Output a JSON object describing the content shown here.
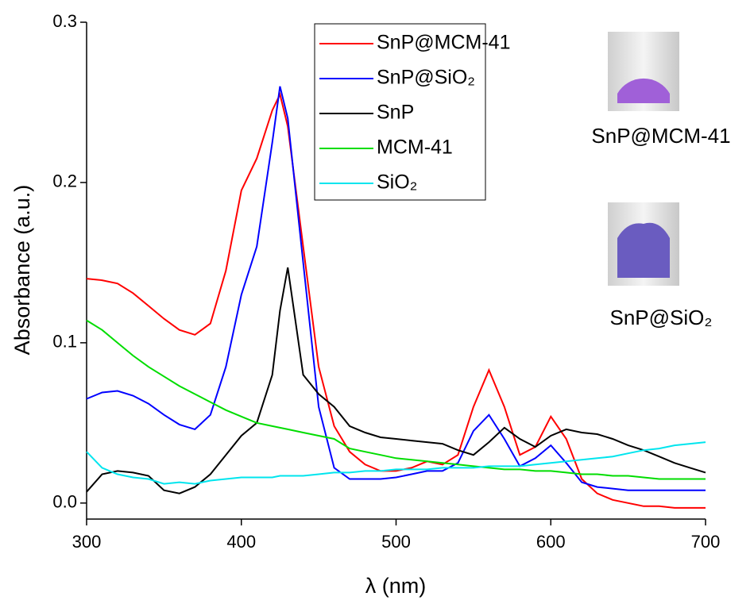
{
  "chart_data": {
    "type": "line",
    "x_label": "λ (nm)",
    "y_label": "Absorbance (a.u.)",
    "x": [
      300,
      310,
      320,
      330,
      340,
      350,
      360,
      370,
      380,
      390,
      400,
      410,
      420,
      425,
      430,
      440,
      450,
      460,
      470,
      480,
      490,
      500,
      510,
      520,
      530,
      540,
      550,
      560,
      570,
      580,
      590,
      600,
      610,
      620,
      630,
      640,
      650,
      660,
      670,
      680,
      690,
      700
    ],
    "series": [
      {
        "name": "SnP@MCM-41",
        "color": "#ff0000",
        "values": [
          0.14,
          0.139,
          0.137,
          0.131,
          0.123,
          0.115,
          0.108,
          0.105,
          0.112,
          0.145,
          0.195,
          0.215,
          0.245,
          0.255,
          0.235,
          0.16,
          0.085,
          0.048,
          0.032,
          0.024,
          0.02,
          0.02,
          0.022,
          0.026,
          0.024,
          0.03,
          0.06,
          0.083,
          0.06,
          0.03,
          0.035,
          0.054,
          0.04,
          0.015,
          0.006,
          0.002,
          0,
          -0.002,
          -0.002,
          -0.003,
          -0.003,
          -0.003
        ]
      },
      {
        "name": "SnP@SiO₂",
        "color": "#0000ff",
        "values": [
          0.065,
          0.069,
          0.07,
          0.067,
          0.062,
          0.055,
          0.049,
          0.046,
          0.055,
          0.085,
          0.13,
          0.16,
          0.225,
          0.26,
          0.24,
          0.15,
          0.06,
          0.022,
          0.015,
          0.015,
          0.015,
          0.016,
          0.018,
          0.02,
          0.02,
          0.025,
          0.045,
          0.055,
          0.04,
          0.023,
          0.028,
          0.036,
          0.025,
          0.013,
          0.01,
          0.009,
          0.008,
          0.008,
          0.008,
          0.008,
          0.008,
          0.008
        ]
      },
      {
        "name": "SnP",
        "color": "#000000",
        "values": [
          0.007,
          0.018,
          0.02,
          0.019,
          0.017,
          0.008,
          0.006,
          0.01,
          0.018,
          0.03,
          0.042,
          0.05,
          0.08,
          0.12,
          0.147,
          0.08,
          0.068,
          0.06,
          0.048,
          0.044,
          0.041,
          0.04,
          0.039,
          0.038,
          0.037,
          0.033,
          0.03,
          0.038,
          0.047,
          0.04,
          0.035,
          0.042,
          0.046,
          0.044,
          0.043,
          0.04,
          0.036,
          0.033,
          0.029,
          0.025,
          0.022,
          0.019
        ]
      },
      {
        "name": "MCM-41",
        "color": "#00dd00",
        "values": [
          0.114,
          0.108,
          0.1,
          0.092,
          0.085,
          0.079,
          0.073,
          0.068,
          0.063,
          0.058,
          0.054,
          0.05,
          0.048,
          0.047,
          0.046,
          0.044,
          0.042,
          0.04,
          0.034,
          0.032,
          0.03,
          0.028,
          0.027,
          0.026,
          0.025,
          0.024,
          0.023,
          0.022,
          0.021,
          0.021,
          0.02,
          0.02,
          0.019,
          0.018,
          0.018,
          0.017,
          0.017,
          0.016,
          0.015,
          0.015,
          0.015,
          0.015
        ]
      },
      {
        "name": "SiO₂",
        "color": "#00e5ee",
        "values": [
          0.032,
          0.022,
          0.018,
          0.016,
          0.015,
          0.012,
          0.013,
          0.012,
          0.014,
          0.015,
          0.016,
          0.016,
          0.016,
          0.017,
          0.017,
          0.017,
          0.018,
          0.019,
          0.019,
          0.02,
          0.02,
          0.021,
          0.021,
          0.021,
          0.022,
          0.022,
          0.022,
          0.023,
          0.023,
          0.023,
          0.024,
          0.025,
          0.026,
          0.027,
          0.028,
          0.029,
          0.031,
          0.033,
          0.034,
          0.036,
          0.037,
          0.038
        ]
      }
    ],
    "xlim": [
      300,
      700
    ],
    "xticks": [
      300,
      400,
      500,
      600,
      700
    ],
    "ylim": [
      -0.01,
      0.3
    ],
    "yticks": [
      {
        "value": 0,
        "label": "0.0"
      },
      0.1,
      0.2,
      0.3
    ],
    "annotations": [
      "SnP@MCM-41",
      "SnP@SiO₂"
    ]
  }
}
